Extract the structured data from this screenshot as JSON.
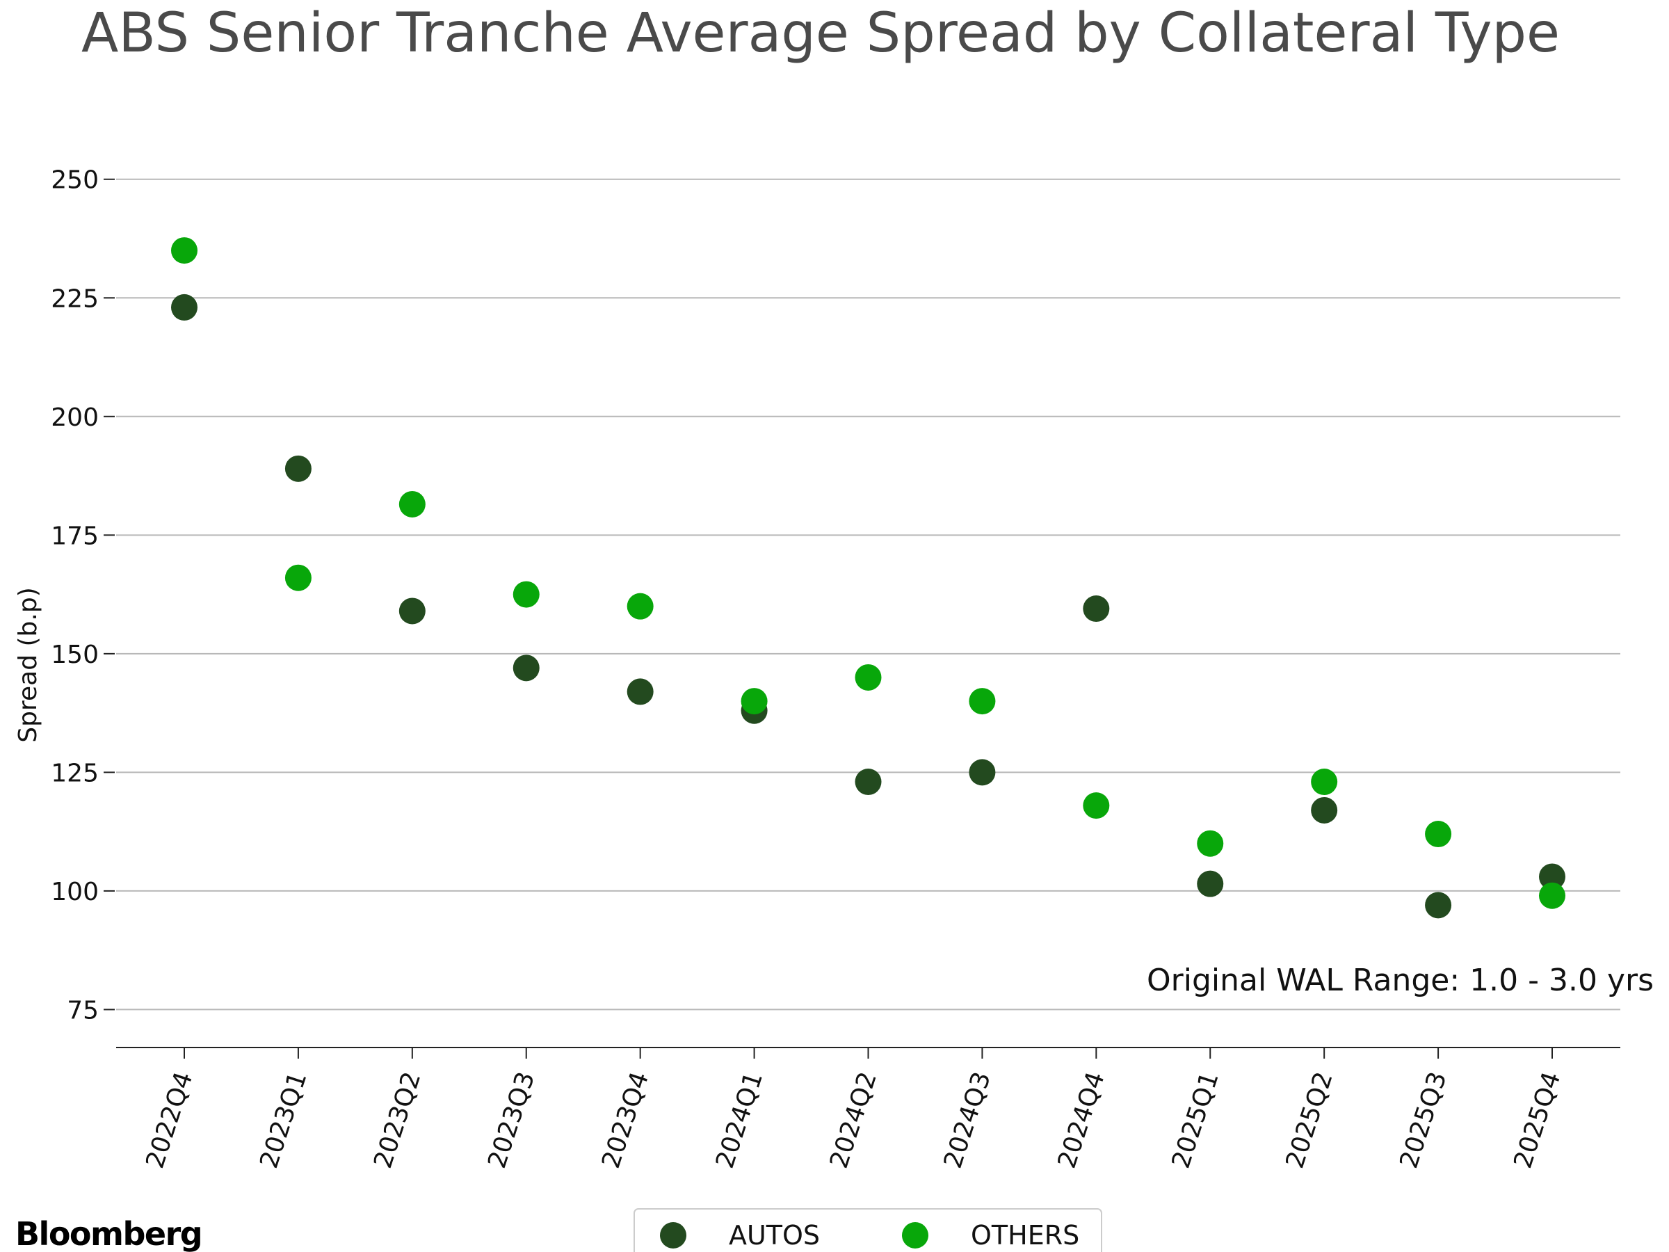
{
  "chart_data": {
    "type": "scatter",
    "title": "ABS Senior Tranche Average Spread by Collateral Type",
    "xlabel": "",
    "ylabel": "Spread (b.p)",
    "ylim": [
      67,
      257
    ],
    "yticks": [
      75,
      100,
      125,
      150,
      175,
      200,
      225,
      250
    ],
    "grid": "horizontal",
    "categories": [
      "2022Q4",
      "2023Q1",
      "2023Q2",
      "2023Q3",
      "2023Q4",
      "2024Q1",
      "2024Q2",
      "2024Q3",
      "2024Q4",
      "2025Q1",
      "2025Q2",
      "2025Q3",
      "2025Q4"
    ],
    "series": [
      {
        "name": "AUTOS",
        "color": "#234a1f",
        "values": [
          223,
          189,
          159,
          147,
          142,
          138,
          123,
          125,
          159.5,
          101.5,
          117,
          97,
          103
        ]
      },
      {
        "name": "OTHERS",
        "color": "#08a70a",
        "values": [
          235,
          166,
          181.5,
          162.5,
          160,
          140,
          145,
          140,
          118,
          110,
          123,
          112,
          99
        ]
      }
    ],
    "annotation": "Original WAL Range: 1.0 - 3.0 yrs",
    "legend_position": "bottom-center"
  },
  "brand": "Bloomberg"
}
